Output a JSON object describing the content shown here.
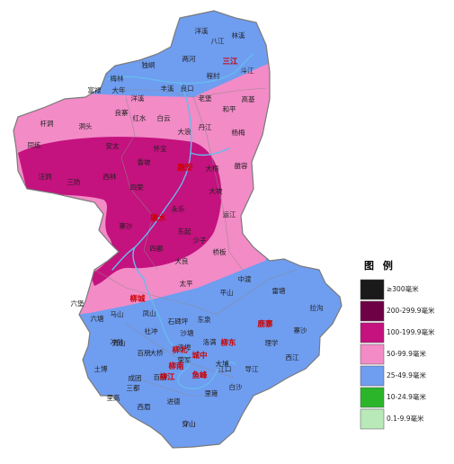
{
  "map": {
    "colors": {
      "outline": "#7a7a7a",
      "river": "#66bbee",
      "base_blue": "#6f9df0",
      "band_pink": "#f28bc6",
      "core_magenta": "#c4127e",
      "county_text": "#cc0000"
    },
    "places": [
      {
        "id": "p1",
        "text": "洋溪"
      },
      {
        "id": "p2",
        "text": "八江"
      },
      {
        "id": "p3",
        "text": "林溪"
      },
      {
        "id": "p4",
        "text": "两河"
      },
      {
        "id": "p5",
        "text": "独峒"
      },
      {
        "id": "p6",
        "text": "梅林"
      },
      {
        "id": "p7",
        "text": "程村"
      },
      {
        "id": "p8",
        "text": "斗江"
      },
      {
        "id": "p9",
        "text": "富禄"
      },
      {
        "id": "p10",
        "text": "大年"
      },
      {
        "id": "p11",
        "text": "洋溪"
      },
      {
        "id": "p12",
        "text": "丰溪"
      },
      {
        "id": "p13",
        "text": "良口"
      },
      {
        "id": "p14",
        "text": "老堡"
      },
      {
        "id": "p15",
        "text": "杆洞"
      },
      {
        "id": "p16",
        "text": "洞头"
      },
      {
        "id": "p17",
        "text": "良寨"
      },
      {
        "id": "p18",
        "text": "红水"
      },
      {
        "id": "p19",
        "text": "白云"
      },
      {
        "id": "p20",
        "text": "大浪"
      },
      {
        "id": "p21",
        "text": "丹江"
      },
      {
        "id": "p22",
        "text": "和平"
      },
      {
        "id": "p23",
        "text": "高基"
      },
      {
        "id": "p24",
        "text": "杨梅"
      },
      {
        "id": "p25",
        "text": "同练"
      },
      {
        "id": "p26",
        "text": "安太"
      },
      {
        "id": "p27",
        "text": "香坡"
      },
      {
        "id": "p28",
        "text": "四荣"
      },
      {
        "id": "p29",
        "text": "大梧"
      },
      {
        "id": "p30",
        "text": "雒容"
      },
      {
        "id": "p31",
        "text": "三防"
      },
      {
        "id": "p32",
        "text": "怀宝"
      },
      {
        "id": "p33",
        "text": "汪洞"
      },
      {
        "id": "p34",
        "text": "西林"
      },
      {
        "id": "p35",
        "text": "大坡"
      },
      {
        "id": "p36",
        "text": "永乐"
      },
      {
        "id": "p37",
        "text": "东起"
      },
      {
        "id": "p38",
        "text": "运江"
      },
      {
        "id": "p39",
        "text": "少子"
      },
      {
        "id": "p40",
        "text": "桥板"
      },
      {
        "id": "p41",
        "text": "寨沙"
      },
      {
        "id": "p42",
        "text": "大良"
      },
      {
        "id": "p43",
        "text": "中渡"
      },
      {
        "id": "p44",
        "text": "太平"
      },
      {
        "id": "p45",
        "text": "平山"
      },
      {
        "id": "p46",
        "text": "四都"
      },
      {
        "id": "p47",
        "text": "雷塘"
      },
      {
        "id": "p48",
        "text": "拉沟"
      },
      {
        "id": "p49",
        "text": "寨沙"
      },
      {
        "id": "p50",
        "text": "穿山"
      },
      {
        "id": "p51",
        "text": "六塘"
      },
      {
        "id": "p52",
        "text": "马山"
      },
      {
        "id": "p53",
        "text": "凤山"
      },
      {
        "id": "p54",
        "text": "石碑坪"
      },
      {
        "id": "p55",
        "text": "东泉"
      },
      {
        "id": "p56",
        "text": "沙塘"
      },
      {
        "id": "p57",
        "text": "社冲"
      },
      {
        "id": "p58",
        "text": "洛满"
      },
      {
        "id": "p59",
        "text": "洛埠"
      },
      {
        "id": "p60",
        "text": "冲脉"
      },
      {
        "id": "p61",
        "text": "西江"
      },
      {
        "id": "p62",
        "text": "土博"
      },
      {
        "id": "p63",
        "text": "成团"
      },
      {
        "id": "p64",
        "text": "进德"
      },
      {
        "id": "p65",
        "text": "大埔"
      },
      {
        "id": "p66",
        "text": "百朋"
      },
      {
        "id": "p67",
        "text": "江口"
      },
      {
        "id": "p68",
        "text": "导江"
      },
      {
        "id": "p69",
        "text": "穿山"
      },
      {
        "id": "p70",
        "text": "里高"
      },
      {
        "id": "p71",
        "text": "三都"
      },
      {
        "id": "p72",
        "text": "里雍"
      },
      {
        "id": "p73",
        "text": "白沙"
      },
      {
        "id": "p74",
        "text": "流山"
      },
      {
        "id": "p75",
        "text": "百朋"
      },
      {
        "id": "p76",
        "text": "西眉"
      },
      {
        "id": "p77",
        "text": "理学"
      },
      {
        "id": "p78",
        "text": "大桥"
      },
      {
        "id": "p79",
        "text": "荣军"
      },
      {
        "id": "p80",
        "text": "六堡"
      }
    ],
    "counties": [
      {
        "id": "c1",
        "text": "三江"
      },
      {
        "id": "c2",
        "text": "融安"
      },
      {
        "id": "c3",
        "text": "融水"
      },
      {
        "id": "c4",
        "text": "柳城"
      },
      {
        "id": "c5",
        "text": "鹿寨"
      },
      {
        "id": "c6",
        "text": "柳北"
      },
      {
        "id": "c7",
        "text": "柳东"
      },
      {
        "id": "c8",
        "text": "城中"
      },
      {
        "id": "c9",
        "text": "柳南"
      },
      {
        "id": "c10",
        "text": "柳江"
      },
      {
        "id": "c11",
        "text": "鱼峰"
      }
    ]
  },
  "legend": {
    "title": "图 例",
    "items": [
      {
        "label": "≥300毫米",
        "color": "#1a1a1a"
      },
      {
        "label": "200-299.9毫米",
        "color": "#6e0045"
      },
      {
        "label": "100-199.9毫米",
        "color": "#c4127e"
      },
      {
        "label": "50-99.9毫米",
        "color": "#f28bc6"
      },
      {
        "label": "25-49.9毫米",
        "color": "#6f9df0"
      },
      {
        "label": "10-24.9毫米",
        "color": "#2bb52b"
      },
      {
        "label": "0.1-9.9毫米",
        "color": "#b9e8b9"
      }
    ]
  }
}
